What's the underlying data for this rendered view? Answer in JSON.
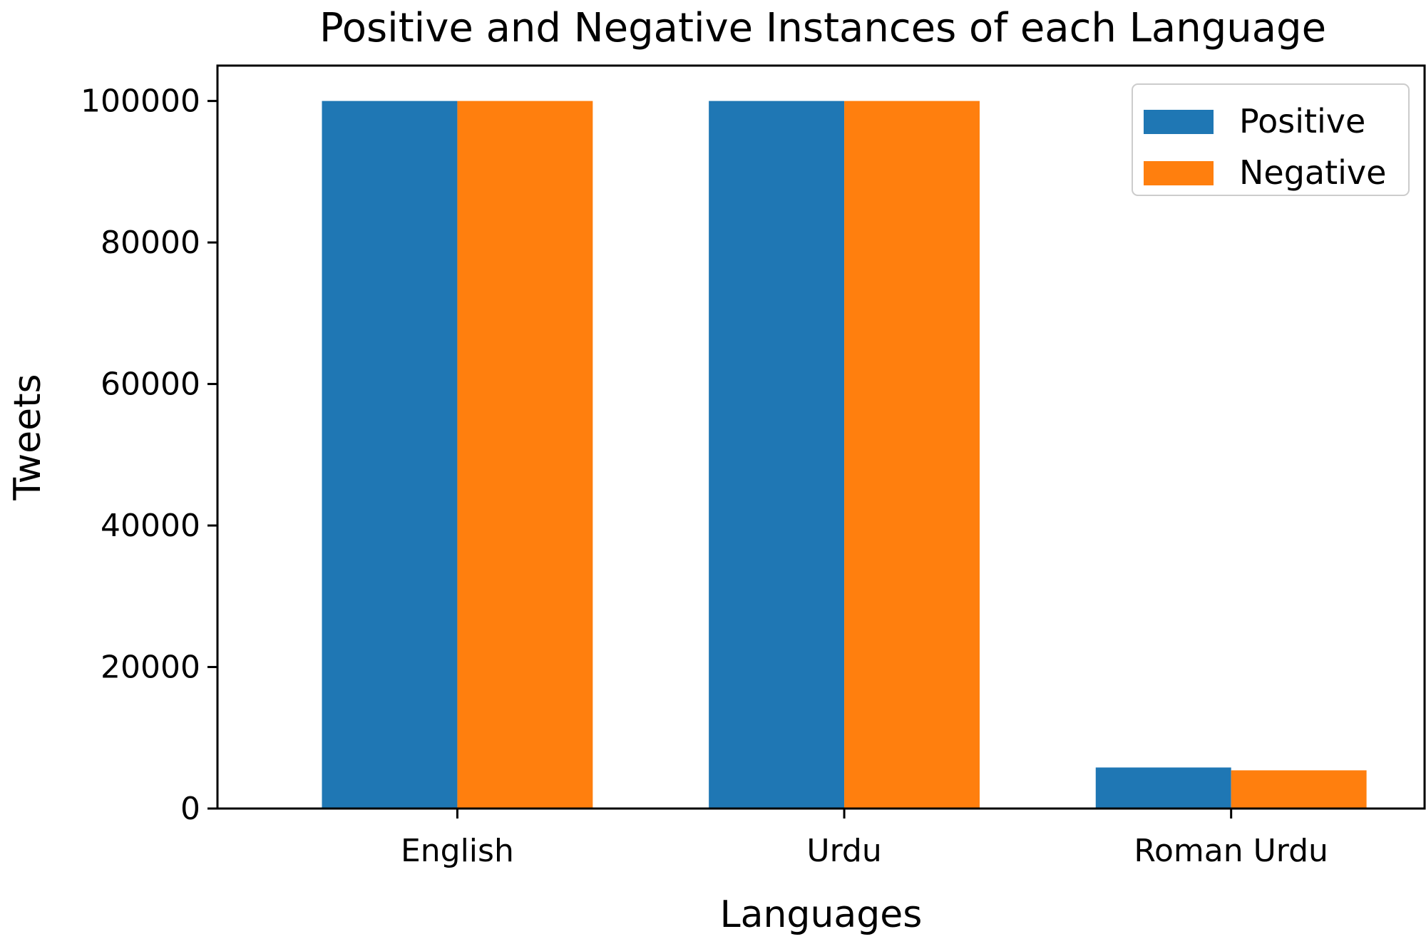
{
  "chart_data": {
    "type": "bar",
    "title": "Positive and Negative Instances of each Language",
    "xlabel": "Languages",
    "ylabel": "Tweets",
    "categories": [
      "English",
      "Urdu",
      "Roman Urdu"
    ],
    "series": [
      {
        "name": "Positive",
        "values": [
          100000,
          100000,
          5800
        ],
        "color": "#1f77b4"
      },
      {
        "name": "Negative",
        "values": [
          100000,
          100000,
          5400
        ],
        "color": "#ff7f0e"
      }
    ],
    "ylim": [
      0,
      105000
    ],
    "yticks": [
      0,
      20000,
      40000,
      60000,
      80000,
      100000
    ],
    "grid": false,
    "legend_position": "top-right"
  }
}
